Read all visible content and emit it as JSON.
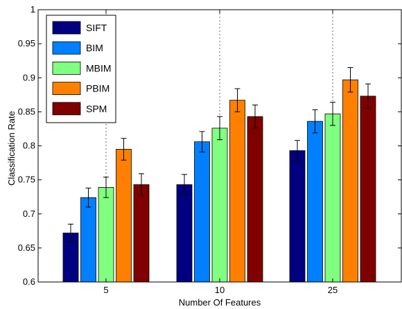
{
  "chart_data": {
    "type": "bar",
    "title": "",
    "xlabel": "Number Of Features",
    "ylabel": "Classification Rate",
    "categories": [
      "5",
      "10",
      "25"
    ],
    "ylim": [
      0.6,
      1.0
    ],
    "yticks": [
      "0.6",
      "0.65",
      "0.7",
      "0.75",
      "0.8",
      "0.85",
      "0.9",
      "0.95",
      "1"
    ],
    "grid": "vertical dashed at categories",
    "legend_position": "top-left",
    "series": [
      {
        "name": "SIFT",
        "color": "#000080",
        "values": [
          0.672,
          0.743,
          0.793
        ],
        "errors": [
          0.013,
          0.015,
          0.015
        ]
      },
      {
        "name": "BIM",
        "color": "#0080FF",
        "values": [
          0.724,
          0.806,
          0.836
        ],
        "errors": [
          0.014,
          0.015,
          0.017
        ]
      },
      {
        "name": "MBIM",
        "color": "#80FF80",
        "values": [
          0.739,
          0.826,
          0.847
        ],
        "errors": [
          0.015,
          0.017,
          0.017
        ]
      },
      {
        "name": "PBIM",
        "color": "#FF8000",
        "values": [
          0.795,
          0.867,
          0.897
        ],
        "errors": [
          0.016,
          0.017,
          0.018
        ]
      },
      {
        "name": "SPM",
        "color": "#800000",
        "values": [
          0.743,
          0.843,
          0.873
        ],
        "errors": [
          0.016,
          0.017,
          0.018
        ]
      }
    ]
  }
}
